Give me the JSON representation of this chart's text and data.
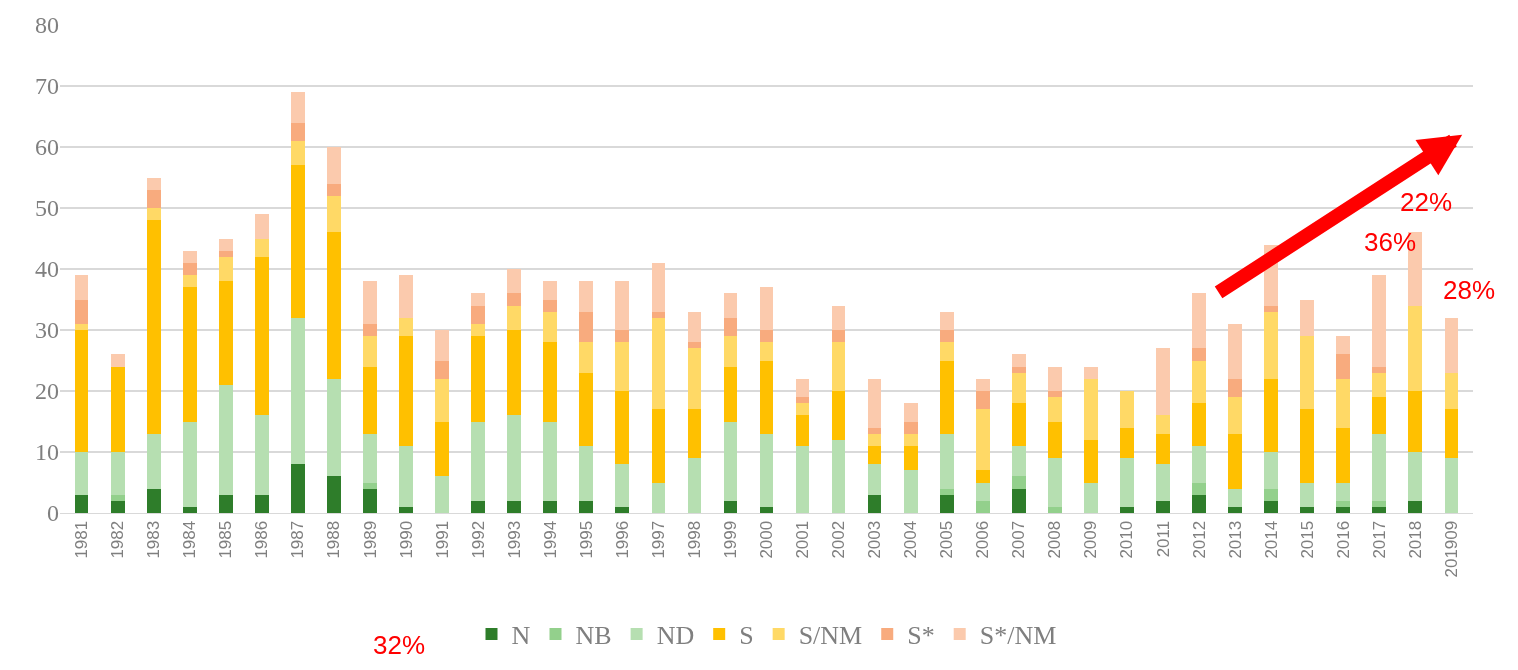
{
  "chart_data": {
    "type": "bar",
    "stacked": true,
    "categories": [
      "1981",
      "1982",
      "1983",
      "1984",
      "1985",
      "1986",
      "1987",
      "1988",
      "1989",
      "1990",
      "1991",
      "1992",
      "1993",
      "1994",
      "1995",
      "1996",
      "1997",
      "1998",
      "1999",
      "2000",
      "2001",
      "2002",
      "2003",
      "2004",
      "2005",
      "2006",
      "2007",
      "2008",
      "2009",
      "2010",
      "2011",
      "2012",
      "2013",
      "2014",
      "2015",
      "2016",
      "2017",
      "2018",
      "201909"
    ],
    "series": [
      {
        "name": "N",
        "color": "#2e7d2a",
        "values": [
          3,
          2,
          4,
          1,
          3,
          3,
          8,
          6,
          4,
          1,
          0,
          2,
          2,
          2,
          2,
          1,
          0,
          0,
          2,
          1,
          0,
          0,
          3,
          0,
          3,
          0,
          4,
          0,
          0,
          1,
          2,
          3,
          1,
          2,
          1,
          1,
          1,
          2,
          0
        ]
      },
      {
        "name": "NB",
        "color": "#93d08c",
        "values": [
          0,
          1,
          0,
          0,
          0,
          0,
          0,
          0,
          1,
          0,
          0,
          0,
          0,
          0,
          0,
          0,
          0,
          0,
          0,
          0,
          0,
          0,
          0,
          0,
          1,
          2,
          2,
          1,
          0,
          0,
          0,
          2,
          0,
          2,
          0,
          1,
          1,
          0,
          0
        ]
      },
      {
        "name": "ND",
        "color": "#b6dfb1",
        "values": [
          7,
          7,
          9,
          14,
          18,
          13,
          24,
          16,
          8,
          10,
          6,
          13,
          14,
          13,
          9,
          7,
          5,
          9,
          13,
          12,
          11,
          12,
          5,
          7,
          9,
          3,
          5,
          8,
          5,
          8,
          6,
          6,
          3,
          6,
          4,
          3,
          11,
          8,
          9
        ]
      },
      {
        "name": "S",
        "color": "#ffc000",
        "values": [
          20,
          14,
          35,
          22,
          17,
          26,
          25,
          24,
          11,
          18,
          9,
          14,
          14,
          13,
          12,
          12,
          12,
          8,
          9,
          12,
          5,
          8,
          3,
          4,
          12,
          2,
          7,
          6,
          7,
          5,
          5,
          7,
          9,
          12,
          12,
          9,
          6,
          10,
          8
        ]
      },
      {
        "name": "S/NM",
        "color": "#ffd966",
        "values": [
          1,
          0,
          2,
          2,
          4,
          3,
          4,
          6,
          5,
          3,
          7,
          2,
          4,
          5,
          5,
          8,
          15,
          10,
          5,
          3,
          2,
          8,
          2,
          2,
          3,
          10,
          5,
          4,
          10,
          6,
          3,
          7,
          6,
          11,
          12,
          8,
          4,
          14,
          6
        ]
      },
      {
        "name": "S*",
        "color": "#f8ab7e",
        "values": [
          4,
          0,
          3,
          2,
          1,
          0,
          3,
          2,
          2,
          0,
          3,
          3,
          2,
          2,
          5,
          2,
          1,
          1,
          3,
          2,
          1,
          2,
          1,
          2,
          2,
          3,
          1,
          1,
          0,
          0,
          0,
          2,
          3,
          1,
          0,
          4,
          1,
          0,
          0
        ]
      },
      {
        "name": "S*/NM",
        "color": "#fbcaad",
        "values": [
          4,
          2,
          2,
          2,
          2,
          4,
          5,
          6,
          7,
          7,
          5,
          2,
          4,
          3,
          5,
          8,
          8,
          5,
          4,
          7,
          3,
          4,
          8,
          3,
          3,
          2,
          2,
          4,
          2,
          0,
          11,
          9,
          9,
          10,
          6,
          3,
          15,
          12,
          9
        ]
      }
    ],
    "ylim": [
      0,
      80
    ],
    "yticks": [
      0,
      10,
      20,
      30,
      40,
      50,
      60,
      70,
      80
    ],
    "grid": "y",
    "legend": "bottom",
    "annotations": [
      "22%",
      "36%",
      "28%",
      "32%"
    ]
  }
}
